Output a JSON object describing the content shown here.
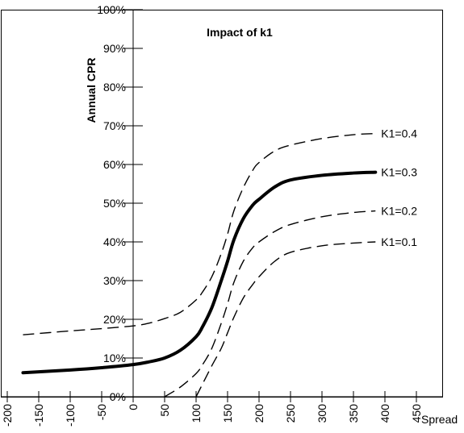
{
  "chart_data": {
    "type": "line",
    "title": "Impact of k1",
    "xlabel": "Spread",
    "ylabel": "Annual CPR",
    "xlim": [
      -200,
      500
    ],
    "ylim": [
      0,
      100
    ],
    "x_ticks": [
      -200,
      -150,
      -100,
      -50,
      0,
      50,
      100,
      150,
      200,
      250,
      300,
      350,
      400,
      450
    ],
    "x_tick_labels": [
      "-200",
      "-150",
      "-100",
      "-50",
      "0",
      "50",
      "100",
      "150",
      "200",
      "250",
      "300",
      "350",
      "400",
      "450"
    ],
    "y_ticks": [
      0,
      10,
      20,
      30,
      40,
      50,
      60,
      70,
      80,
      90,
      100
    ],
    "y_tick_labels": [
      "0%",
      "10%",
      "20%",
      "30%",
      "40%",
      "50%",
      "60%",
      "70%",
      "80%",
      "90%",
      "100%"
    ],
    "grid": false,
    "series": [
      {
        "name": "K1=0.4",
        "style": "dashed",
        "x": [
          -175,
          -100,
          -50,
          0,
          25,
          50,
          75,
          100,
          110,
          125,
          140,
          150,
          160,
          175,
          190,
          200,
          225,
          250,
          300,
          350,
          385
        ],
        "y": [
          16.0,
          17.0,
          17.6,
          18.3,
          19.0,
          20.2,
          21.8,
          25.0,
          27.0,
          31.0,
          37.0,
          42.0,
          48.0,
          54.0,
          58.5,
          60.5,
          63.5,
          65.0,
          66.7,
          67.7,
          68.0
        ]
      },
      {
        "name": "K1=0.3",
        "style": "solid",
        "x": [
          -175,
          -100,
          -50,
          0,
          25,
          50,
          75,
          100,
          110,
          125,
          140,
          150,
          160,
          175,
          190,
          200,
          225,
          250,
          300,
          350,
          385
        ],
        "y": [
          6.2,
          6.9,
          7.5,
          8.3,
          9.0,
          10.0,
          12.0,
          15.5,
          18.0,
          23.0,
          30.0,
          35.0,
          40.5,
          46.0,
          49.5,
          51.0,
          54.2,
          56.0,
          57.2,
          57.8,
          58.0
        ]
      },
      {
        "name": "K1=0.2",
        "style": "dashed",
        "x": [
          50,
          75,
          100,
          110,
          125,
          140,
          150,
          160,
          175,
          190,
          200,
          225,
          250,
          300,
          350,
          385
        ],
        "y": [
          0.0,
          2.5,
          6.0,
          8.2,
          12.5,
          19.0,
          24.0,
          29.5,
          35.0,
          38.5,
          40.0,
          42.7,
          44.5,
          46.5,
          47.6,
          48.0
        ]
      },
      {
        "name": "K1=0.1",
        "style": "dashed",
        "x": [
          100,
          110,
          125,
          140,
          150,
          160,
          175,
          190,
          200,
          225,
          250,
          300,
          350,
          385
        ],
        "y": [
          0.0,
          3.2,
          8.0,
          12.5,
          16.5,
          20.5,
          25.5,
          29.0,
          31.0,
          35.0,
          37.3,
          39.0,
          39.7,
          40.0
        ]
      }
    ]
  }
}
